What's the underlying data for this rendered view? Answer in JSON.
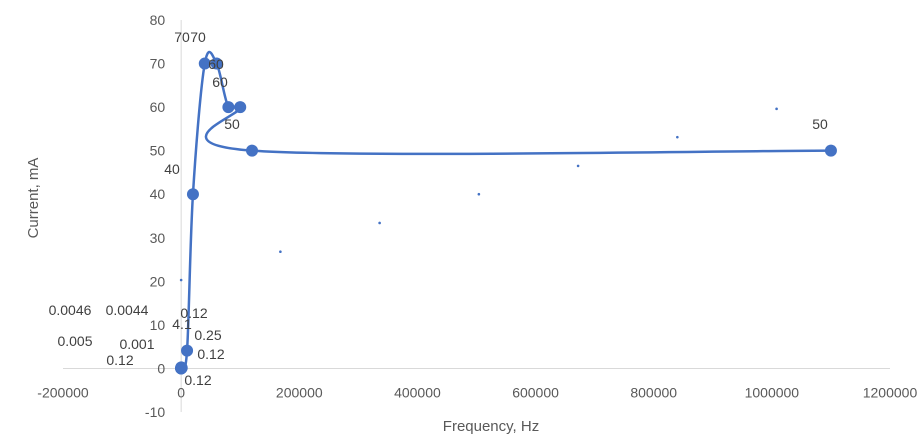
{
  "chart_data": {
    "type": "scatter",
    "xlabel": "Frequency, Hz",
    "ylabel": "Current, mA",
    "xlim": [
      -200000,
      1200000
    ],
    "ylim": [
      -10,
      80
    ],
    "x_ticks": [
      -200000,
      0,
      200000,
      400000,
      600000,
      800000,
      1000000,
      1200000
    ],
    "y_ticks": [
      -10,
      0,
      10,
      20,
      30,
      40,
      50,
      60,
      70,
      80
    ],
    "x_tick_labels": [
      "-200000",
      "0",
      "200000",
      "400000",
      "600000",
      "800000",
      "1000000",
      "1200000"
    ],
    "y_tick_labels": [
      "-10",
      "0",
      "10",
      "20",
      "30",
      "40",
      "50",
      "60",
      "70",
      "80"
    ],
    "grid": false,
    "legend": "none",
    "series": [
      {
        "color": "#4472c4",
        "smooth": true,
        "points": [
          {
            "x": 0,
            "y": 0.0046
          },
          {
            "x": 1,
            "y": 0.005
          },
          {
            "x": 10,
            "y": 0.0044
          },
          {
            "x": 20,
            "y": 0.001
          },
          {
            "x": 50,
            "y": 0.12
          },
          {
            "x": 100,
            "y": 0.12
          },
          {
            "x": 200,
            "y": 0.25
          },
          {
            "x": 500,
            "y": 0.12
          },
          {
            "x": 1000,
            "y": 0.12
          },
          {
            "x": 10000,
            "y": 4.1
          },
          {
            "x": 20000,
            "y": 40
          },
          {
            "x": 40000,
            "y": 70
          },
          {
            "x": 60000,
            "y": 70
          },
          {
            "x": 80000,
            "y": 60
          },
          {
            "x": 100000,
            "y": 60
          },
          {
            "x": 120000,
            "y": 50
          },
          {
            "x": 1100000,
            "y": 50
          }
        ]
      },
      {
        "color": "#4472c4",
        "marker": "dot",
        "points": [
          {
            "x": 0,
            "y": 20.3
          },
          {
            "x": 168000,
            "y": 26.8
          },
          {
            "x": 336000,
            "y": 33.4
          },
          {
            "x": 504000,
            "y": 40
          },
          {
            "x": 672000,
            "y": 46.5
          },
          {
            "x": 840000,
            "y": 53.1
          },
          {
            "x": 1008000,
            "y": 59.6
          }
        ]
      }
    ],
    "data_labels": [
      {
        "text": "0.0046"
      },
      {
        "text": "0.0044"
      },
      {
        "text": "0.12"
      },
      {
        "text": "4.1"
      },
      {
        "text": "0.005"
      },
      {
        "text": "0.001"
      },
      {
        "text": "0.25"
      },
      {
        "text": "0.12"
      },
      {
        "text": "0.12"
      },
      {
        "text": "0.12"
      },
      {
        "text": "40"
      },
      {
        "text": "70"
      },
      {
        "text": "70"
      },
      {
        "text": "60"
      },
      {
        "text": "60"
      },
      {
        "text": "50"
      },
      {
        "text": "50"
      }
    ]
  }
}
